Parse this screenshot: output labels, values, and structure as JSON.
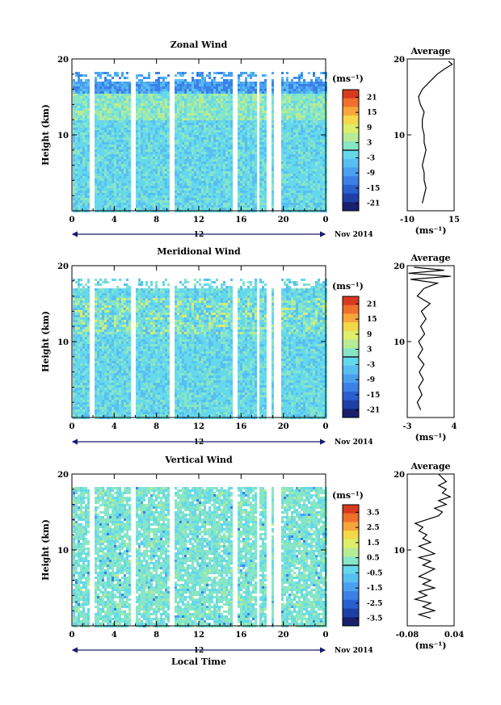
{
  "chart_data": [
    {
      "type": "heatmap",
      "title": "Zonal Wind",
      "ylabel": "Height (km)",
      "xlim": [
        0,
        24
      ],
      "ylim": [
        0,
        20
      ],
      "x_ticks": [
        "0",
        "4",
        "8",
        "12",
        "16",
        "20",
        "0"
      ],
      "y_ticks": [
        "20",
        "10"
      ],
      "date_marker": "12",
      "date_label": "Nov 2014",
      "colorbar": {
        "unit": "(ms⁻¹)",
        "range": [
          -24,
          24
        ],
        "ticks": [
          "21",
          "15",
          "9",
          "3",
          "-3",
          "-9",
          "-15",
          "-21"
        ]
      },
      "profile": {
        "title": "Average",
        "xlabel": "(ms⁻¹)",
        "x_ticks": [
          "-10",
          "15"
        ],
        "y_ticks": [
          "20",
          "10"
        ],
        "xlim": [
          -10,
          15
        ],
        "points": [
          [
            -2,
            1
          ],
          [
            -1,
            2
          ],
          [
            0,
            3
          ],
          [
            -1,
            4
          ],
          [
            -1,
            5
          ],
          [
            -2,
            6
          ],
          [
            -1,
            7
          ],
          [
            0,
            8
          ],
          [
            -1,
            9
          ],
          [
            -1,
            10
          ],
          [
            -2,
            11
          ],
          [
            -2,
            12
          ],
          [
            -1,
            13
          ],
          [
            -3,
            14
          ],
          [
            -4,
            15
          ],
          [
            -2,
            16
          ],
          [
            2,
            17
          ],
          [
            6,
            18
          ],
          [
            10,
            18.7
          ],
          [
            14,
            19.3
          ],
          [
            12,
            19.7
          ]
        ]
      }
    },
    {
      "type": "heatmap",
      "title": "Meridional Wind",
      "ylabel": "Height (km)",
      "xlim": [
        0,
        24
      ],
      "ylim": [
        0,
        20
      ],
      "x_ticks": [
        "0",
        "4",
        "8",
        "12",
        "16",
        "20",
        "0"
      ],
      "y_ticks": [
        "20",
        "10"
      ],
      "date_marker": "12",
      "date_label": "Nov 2014",
      "colorbar": {
        "unit": "(ms⁻¹)",
        "range": [
          -24,
          24
        ],
        "ticks": [
          "21",
          "15",
          "9",
          "3",
          "-3",
          "-9",
          "-15",
          "-21"
        ]
      },
      "profile": {
        "title": "Average",
        "xlabel": "(ms⁻¹)",
        "x_ticks": [
          "-3",
          "4"
        ],
        "y_ticks": [
          "20",
          "10"
        ],
        "xlim": [
          -3,
          4
        ],
        "points": [
          [
            -1,
            1
          ],
          [
            -1.5,
            2
          ],
          [
            -0.8,
            3
          ],
          [
            -1.3,
            4
          ],
          [
            -0.6,
            5
          ],
          [
            -1.2,
            6
          ],
          [
            -0.5,
            7
          ],
          [
            -1.4,
            8
          ],
          [
            -0.7,
            9
          ],
          [
            -1.3,
            10
          ],
          [
            -0.4,
            11
          ],
          [
            -1.0,
            12
          ],
          [
            -0.2,
            13
          ],
          [
            -0.9,
            14
          ],
          [
            0.4,
            15
          ],
          [
            -1.5,
            16
          ],
          [
            -0.5,
            17
          ],
          [
            1.5,
            17.7
          ],
          [
            -2.5,
            18.2
          ],
          [
            3.5,
            18.6
          ],
          [
            -2.8,
            19.0
          ],
          [
            2.5,
            19.4
          ],
          [
            -2.0,
            19.8
          ]
        ]
      }
    },
    {
      "type": "heatmap",
      "title": "Vertical Wind",
      "ylabel": "Height (km)",
      "xlabel": "Local Time",
      "xlim": [
        0,
        24
      ],
      "ylim": [
        0,
        20
      ],
      "x_ticks": [
        "0",
        "4",
        "8",
        "12",
        "16",
        "20",
        "0"
      ],
      "y_ticks": [
        "20",
        "10"
      ],
      "date_marker": "12",
      "date_label": "Nov 2014",
      "colorbar": {
        "unit": "(ms⁻¹)",
        "range": [
          -4,
          4
        ],
        "ticks": [
          "3.5",
          "2.5",
          "1.5",
          "0.5",
          "-0.5",
          "-1.5",
          "-2.5",
          "-3.5"
        ]
      },
      "profile": {
        "title": "Average",
        "xlabel": "(ms⁻¹)",
        "x_ticks": [
          "-0.08",
          "0.04"
        ],
        "y_ticks": [
          "20",
          "10"
        ],
        "xlim": [
          -0.08,
          0.04
        ],
        "points": [
          [
            -0.02,
            1
          ],
          [
            -0.05,
            1.5
          ],
          [
            -0.01,
            2
          ],
          [
            -0.04,
            2.5
          ],
          [
            -0.02,
            3
          ],
          [
            -0.06,
            3.5
          ],
          [
            -0.03,
            4
          ],
          [
            -0.05,
            4.5
          ],
          [
            -0.01,
            5
          ],
          [
            -0.04,
            5.5
          ],
          [
            -0.02,
            6
          ],
          [
            -0.05,
            6.5
          ],
          [
            -0.03,
            7
          ],
          [
            -0.01,
            7.5
          ],
          [
            -0.04,
            8
          ],
          [
            -0.02,
            8.5
          ],
          [
            -0.05,
            9
          ],
          [
            -0.01,
            9.5
          ],
          [
            -0.03,
            10
          ],
          [
            -0.05,
            10.5
          ],
          [
            -0.02,
            11
          ],
          [
            -0.04,
            11.5
          ],
          [
            -0.03,
            12
          ],
          [
            -0.05,
            12.5
          ],
          [
            -0.04,
            13
          ],
          [
            -0.06,
            13.5
          ],
          [
            -0.03,
            14
          ],
          [
            0.0,
            14.5
          ],
          [
            0.01,
            15
          ],
          [
            -0.01,
            15.5
          ],
          [
            0.02,
            16
          ],
          [
            0.0,
            16.5
          ],
          [
            0.03,
            17
          ],
          [
            0.01,
            17.5
          ],
          [
            0.02,
            18
          ],
          [
            0.0,
            18.5
          ],
          [
            0.02,
            19
          ],
          [
            0.01,
            19.5
          ],
          [
            0.0,
            20
          ]
        ]
      }
    }
  ],
  "colormap": [
    "#ffffff",
    "#1a1f6e",
    "#1f3fa8",
    "#2a5fd0",
    "#3a80e6",
    "#4aa0f0",
    "#58bff2",
    "#66d8ec",
    "#86e6c6",
    "#b6ec96",
    "#dcee6a",
    "#f4d84a",
    "#f6a63a",
    "#f0702c",
    "#d83a20"
  ]
}
